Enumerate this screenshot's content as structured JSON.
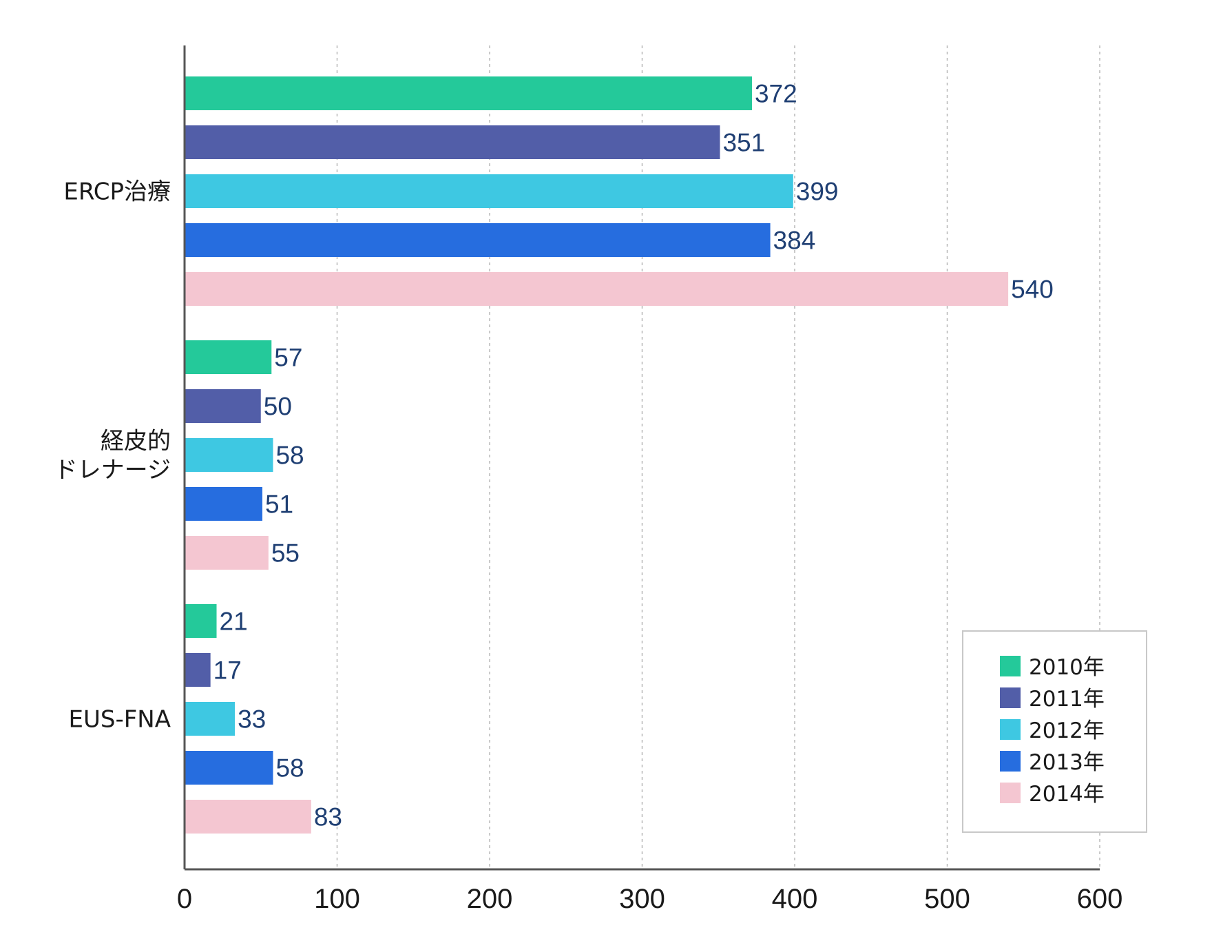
{
  "chart_data": {
    "type": "bar",
    "orientation": "horizontal",
    "categories": [
      [
        "ERCP治療"
      ],
      [
        "経皮的",
        "ドレナージ"
      ],
      [
        "EUS-FNA"
      ]
    ],
    "series": [
      {
        "name": "2010年",
        "color": "#24c99a",
        "values": [
          372,
          57,
          21
        ]
      },
      {
        "name": "2011年",
        "color": "#525ea8",
        "values": [
          351,
          50,
          17
        ]
      },
      {
        "name": "2012年",
        "color": "#3ec8e2",
        "values": [
          399,
          58,
          33
        ]
      },
      {
        "name": "2013年",
        "color": "#266ddf",
        "values": [
          384,
          51,
          58
        ]
      },
      {
        "name": "2014年",
        "color": "#f4c6d1",
        "values": [
          540,
          55,
          83
        ]
      }
    ],
    "xlim": [
      0,
      600
    ],
    "xticks": [
      0,
      100,
      200,
      300,
      400,
      500,
      600
    ],
    "grid": "vertical dashed",
    "legend_position": "bottom-right",
    "title": "",
    "xlabel": "",
    "ylabel": ""
  }
}
